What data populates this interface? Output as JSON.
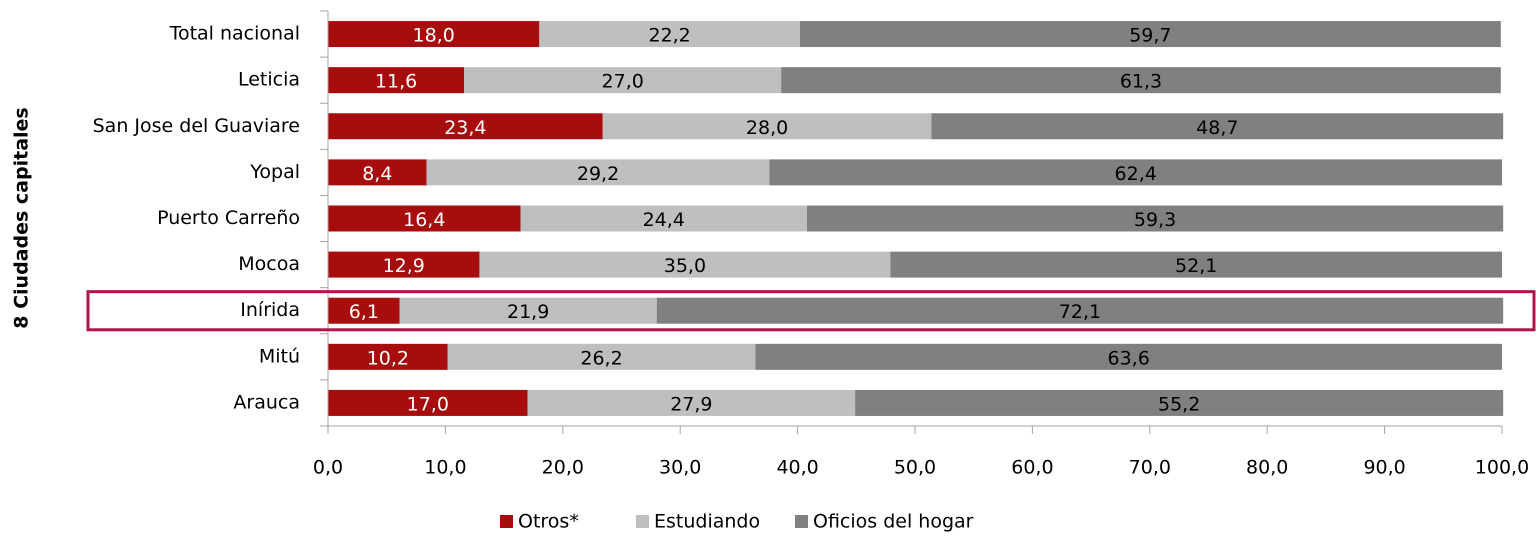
{
  "chart_data": {
    "type": "stacked_bar_horizontal",
    "y_axis_label": "8 Ciudades capitales",
    "categories": [
      "Total nacional",
      "Leticia",
      "San Jose del Guaviare",
      "Yopal",
      "Puerto Carreño",
      "Mocoa",
      "Inírida",
      "Mitú",
      "Arauca"
    ],
    "series": [
      {
        "name": "Otros*",
        "color": "#a80d0d",
        "values": [
          18.0,
          11.6,
          23.4,
          8.4,
          16.4,
          12.9,
          6.1,
          10.2,
          17.0
        ],
        "value_labels": [
          "18,0",
          "11,6",
          "23,4",
          "8,4",
          "16,4",
          "12,9",
          "6,1",
          "10,2",
          "17,0"
        ]
      },
      {
        "name": "Estudiando",
        "color": "#bfbfbf",
        "values": [
          22.2,
          27.0,
          28.0,
          29.2,
          24.4,
          35.0,
          21.9,
          26.2,
          27.9
        ],
        "value_labels": [
          "22,2",
          "27,0",
          "28,0",
          "29,2",
          "24,4",
          "35,0",
          "21,9",
          "26,2",
          "27,9"
        ]
      },
      {
        "name": "Oficios del hogar",
        "color": "#808080",
        "values": [
          59.7,
          61.3,
          48.7,
          62.4,
          59.3,
          52.1,
          72.1,
          63.6,
          55.2
        ],
        "value_labels": [
          "59,7",
          "61,3",
          "48,7",
          "62,4",
          "59,3",
          "52,1",
          "72,1",
          "63,6",
          "55,2"
        ]
      }
    ],
    "xlim": [
      0,
      100
    ],
    "xticks": [
      {
        "value": 0,
        "label": "0,0"
      },
      {
        "value": 10,
        "label": "10,0"
      },
      {
        "value": 20,
        "label": "20,0"
      },
      {
        "value": 30,
        "label": "30,0"
      },
      {
        "value": 40,
        "label": "40,0"
      },
      {
        "value": 50,
        "label": "50,0"
      },
      {
        "value": 60,
        "label": "60,0"
      },
      {
        "value": 70,
        "label": "70,0"
      },
      {
        "value": 80,
        "label": "80,0"
      },
      {
        "value": 90,
        "label": "90,0"
      },
      {
        "value": 100,
        "label": "100,0"
      }
    ],
    "legend": "bottom"
  }
}
